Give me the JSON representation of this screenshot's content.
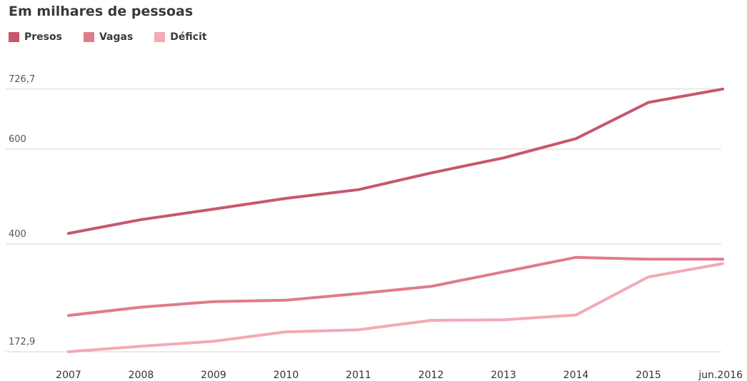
{
  "chart_data": {
    "type": "line",
    "title": "Em milhares de pessoas",
    "categories": [
      "2007",
      "2008",
      "2009",
      "2010",
      "2011",
      "2012",
      "2013",
      "2014",
      "2015",
      "jun.2016"
    ],
    "y_tick_labels": [
      {
        "value": 172.9,
        "label": "172,9"
      },
      {
        "value": 400,
        "label": "400"
      },
      {
        "value": 600,
        "label": "600"
      },
      {
        "value": 726.7,
        "label": "726,7"
      }
    ],
    "ylim": [
      172.9,
      726.7
    ],
    "grid": true,
    "legend_position": "top-left",
    "series": [
      {
        "name": "Presos",
        "color": "#c8576d",
        "values": [
          422.4,
          451.4,
          473.6,
          496.3,
          514.6,
          549.8,
          581.5,
          622.2,
          698.6,
          726.7
        ]
      },
      {
        "name": "Vagas",
        "color": "#e07b8b",
        "values": [
          249.5,
          266.9,
          278.7,
          281.5,
          295.4,
          310.7,
          341.2,
          371.9,
          368.0,
          368.0
        ]
      },
      {
        "name": "Déficit",
        "color": "#f2aab5",
        "values": [
          172.9,
          184.6,
          194.9,
          214.8,
          219.2,
          239.1,
          240.3,
          250.3,
          330.6,
          358.7
        ]
      }
    ]
  }
}
